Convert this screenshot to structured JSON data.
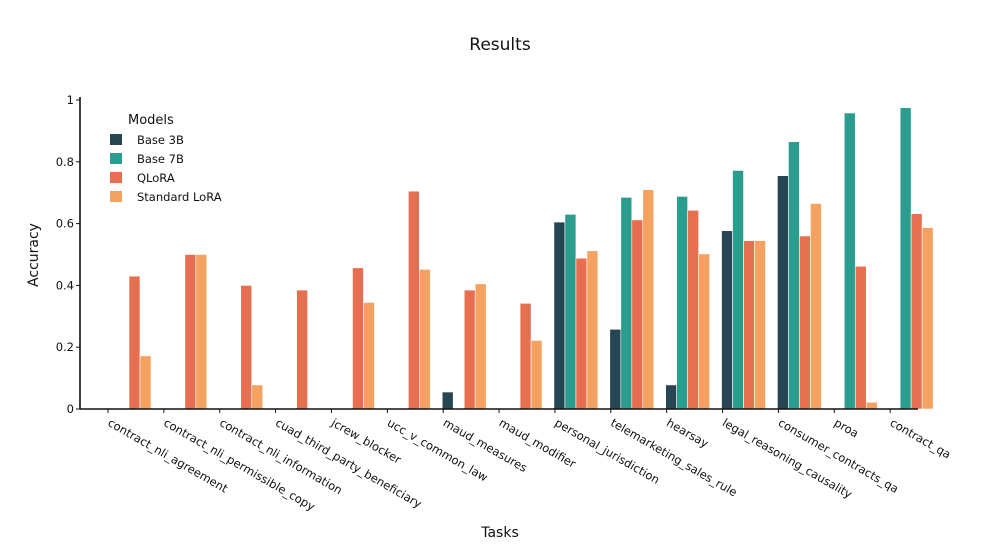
{
  "chart_data": {
    "type": "bar",
    "title": "Results",
    "xlabel": "Tasks",
    "ylabel": "Accuracy",
    "ylim": [
      0,
      1
    ],
    "yticks": [
      "0",
      "0.2",
      "0.4",
      "0.6",
      "0.8",
      "1"
    ],
    "grid": false,
    "legend": {
      "title": "Models",
      "position": "top-left"
    },
    "categories": [
      "contract_nli_agreement",
      "contract_nli_permissible_copy",
      "contract_nli_information",
      "cuad_third_party_beneficiary",
      "jcrew_blocker",
      "ucc_v_common_law",
      "maud_measures",
      "maud_modifier",
      "personal_jurisdiction",
      "telemarketing_sales_rule",
      "hearsay",
      "legal_reasoning_causality",
      "consumer_contracts_qa",
      "proa",
      "contract_qa"
    ],
    "series": [
      {
        "name": "Base 3B",
        "color": "#264653",
        "values": [
          0,
          0,
          0,
          0,
          0,
          0,
          0.055,
          0,
          0.605,
          0.258,
          0.078,
          0.577,
          0.755,
          0,
          0
        ]
      },
      {
        "name": "Base 7B",
        "color": "#2a9d8f",
        "values": [
          0,
          0,
          0,
          0,
          0,
          0,
          0,
          0,
          0.63,
          0.685,
          0.688,
          0.772,
          0.865,
          0.958,
          0.975
        ]
      },
      {
        "name": "QLoRA",
        "color": "#e76f51",
        "values": [
          0.43,
          0.5,
          0.4,
          0.385,
          0.457,
          0.705,
          0.385,
          0.342,
          0.488,
          0.612,
          0.643,
          0.545,
          0.56,
          0.462,
          0.632
        ]
      },
      {
        "name": "Standard LoRA",
        "color": "#f4a261",
        "values": [
          0.172,
          0.5,
          0.078,
          0,
          0.345,
          0.452,
          0.405,
          0.222,
          0.512,
          0.71,
          0.502,
          0.545,
          0.665,
          0.022,
          0.587
        ]
      }
    ]
  }
}
